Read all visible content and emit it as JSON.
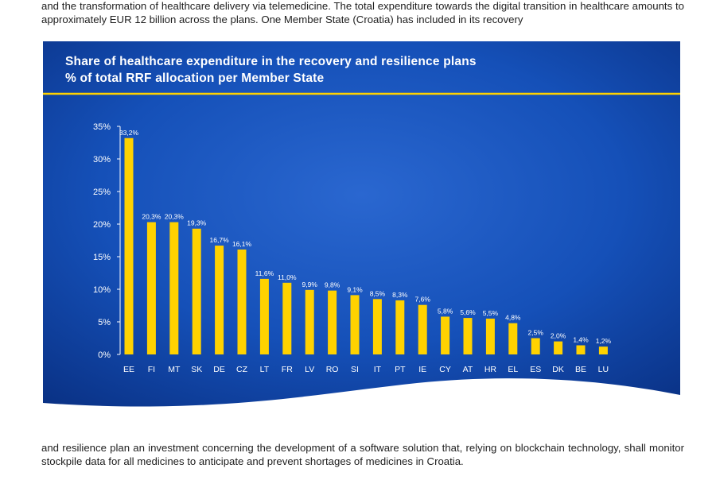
{
  "document": {
    "paragraph_before": "and the transformation of healthcare delivery via telemedicine. The total expenditure towards the digital transition in healthcare amounts to approximately EUR 12 billion across the plans. One Member State (Croatia) has included in its recovery",
    "paragraph_after": "and resilience plan an investment concerning the development of a software solution that, relying on blockchain technology, shall monitor stockpile data for all medicines to anticipate and prevent shortages of medicines in Croatia."
  },
  "colors": {
    "panel_bg": "#0d3f9e",
    "panel_glow": "#2a67d0",
    "bar": "#ffd200",
    "rule": "#ffd200",
    "text": "#ffffff"
  },
  "chart_data": {
    "type": "bar",
    "title": "Share of healthcare expenditure in the recovery and resilience plans",
    "subtitle": "% of total RRF allocation per Member State",
    "categories": [
      "EE",
      "FI",
      "MT",
      "SK",
      "DE",
      "CZ",
      "LT",
      "FR",
      "LV",
      "RO",
      "SI",
      "IT",
      "PT",
      "IE",
      "CY",
      "AT",
      "HR",
      "EL",
      "ES",
      "DK",
      "BE",
      "LU"
    ],
    "values": [
      33.2,
      20.3,
      20.3,
      19.3,
      16.7,
      16.1,
      11.6,
      11.0,
      9.9,
      9.8,
      9.1,
      8.5,
      8.3,
      7.6,
      5.8,
      5.6,
      5.5,
      4.8,
      2.5,
      2.0,
      1.4,
      1.2
    ],
    "data_labels": [
      "33,2%",
      "20,3%",
      "20,3%",
      "19,3%",
      "16,7%",
      "16,1%",
      "11,6%",
      "11,0%",
      "9,9%",
      "9,8%",
      "9,1%",
      "8,5%",
      "8,3%",
      "7,6%",
      "5,8%",
      "5,6%",
      "5,5%",
      "4,8%",
      "2,5%",
      "2,0%",
      "1,4%",
      "1,2%"
    ],
    "yticks": [
      0,
      5,
      10,
      15,
      20,
      25,
      30,
      35
    ],
    "ytick_labels": [
      "0%",
      "5%",
      "10%",
      "15%",
      "20%",
      "25%",
      "30%",
      "35%"
    ],
    "ylim": [
      0,
      35
    ],
    "xlabel": "",
    "ylabel": "",
    "grid": false,
    "legend": "none"
  }
}
